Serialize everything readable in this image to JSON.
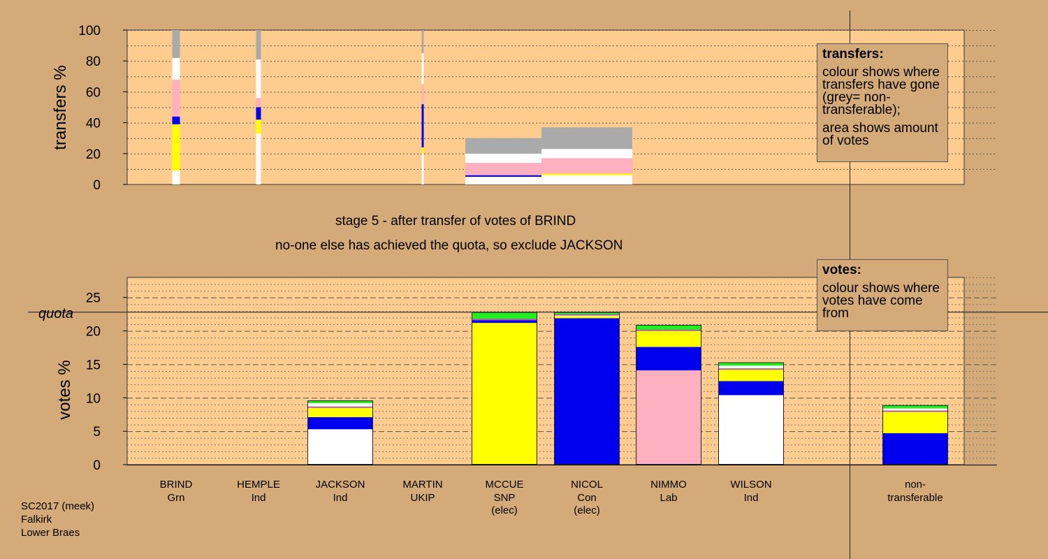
{
  "texts": {
    "stage_line": "stage 5 - after transfer of votes of BRIND",
    "exclude_line": "no-one else has achieved the quota, so exclude JACKSON",
    "quota_label": "quota",
    "footer": [
      "SC2017 (meek)",
      "Falkirk",
      "Lower Braes"
    ]
  },
  "legends": {
    "transfers": {
      "title": "transfers:",
      "lines": [
        "colour shows where transfers have gone (grey= non-transferable);",
        "area shows amount of votes"
      ]
    },
    "votes": {
      "title": "votes:",
      "lines": [
        "colour shows where votes have come from"
      ]
    }
  },
  "colors": {
    "background": "#d4aa78",
    "plot_bg": "#ffcc8f",
    "white": "#ffffff",
    "yellow": "#ffff00",
    "blue": "#0000ee",
    "pink": "#ffb0c0",
    "green": "#22ee22",
    "grey": "#aaaaaa",
    "purple": "#aa55aa"
  },
  "chart_data": [
    {
      "type": "bar",
      "stacked": true,
      "ylabel": "transfers %",
      "ylim": [
        0,
        100
      ],
      "yticks": [
        0,
        20,
        40,
        60,
        80,
        100
      ],
      "categories": [
        "BRIND",
        "HEMPLE",
        "JACKSON",
        "MARTIN",
        "MCCUE",
        "NICOL",
        "NIMMO",
        "WILSON"
      ],
      "bars": [
        {
          "category": "BRIND",
          "stage_width": 1,
          "segments": [
            {
              "color": "white",
              "value": 9
            },
            {
              "color": "yellow",
              "value": 30
            },
            {
              "color": "blue",
              "value": 5
            },
            {
              "color": "pink",
              "value": 24
            },
            {
              "color": "white",
              "value": 14
            },
            {
              "color": "grey",
              "value": 18
            }
          ]
        },
        {
          "category": "HEMPLE",
          "stage_width": 2,
          "segments": [
            {
              "color": "white",
              "value": 33
            },
            {
              "color": "yellow",
              "value": 9
            },
            {
              "color": "blue",
              "value": 8
            },
            {
              "color": "pink",
              "value": 6
            },
            {
              "color": "white",
              "value": 25
            },
            {
              "color": "grey",
              "value": 19
            }
          ]
        },
        {
          "category": "MARTIN",
          "stage_width": 3,
          "segments": [
            {
              "color": "white",
              "value": 20
            },
            {
              "color": "yellow",
              "value": 4
            },
            {
              "color": "blue",
              "value": 28
            },
            {
              "color": "pink",
              "value": 13
            },
            {
              "color": "white",
              "value": 20
            },
            {
              "color": "grey",
              "value": 15
            }
          ]
        },
        {
          "category": "MCCUE",
          "stage_width": 4,
          "segments": [
            {
              "color": "white",
              "value": 5
            },
            {
              "color": "blue",
              "value": 1
            },
            {
              "color": "pink",
              "value": 8
            },
            {
              "color": "white",
              "value": 6
            },
            {
              "color": "grey",
              "value": 10
            }
          ]
        },
        {
          "category": "NICOL",
          "stage_width": 5,
          "segments": [
            {
              "color": "white",
              "value": 6
            },
            {
              "color": "yellow",
              "value": 1
            },
            {
              "color": "pink",
              "value": 10
            },
            {
              "color": "white",
              "value": 6
            },
            {
              "color": "grey",
              "value": 14
            }
          ]
        }
      ]
    },
    {
      "type": "bar",
      "stacked": true,
      "ylabel": "votes %",
      "ylim": [
        0,
        28
      ],
      "yticks": [
        0,
        5,
        10,
        15,
        20,
        25
      ],
      "quota": 22.8,
      "categories": [
        {
          "name": "BRIND",
          "party": "Grn",
          "note": ""
        },
        {
          "name": "HEMPLE",
          "party": "Ind",
          "note": ""
        },
        {
          "name": "JACKSON",
          "party": "Ind",
          "note": ""
        },
        {
          "name": "MARTIN",
          "party": "UKIP",
          "note": ""
        },
        {
          "name": "MCCUE",
          "party": "SNP",
          "note": "(elec)"
        },
        {
          "name": "NICOL",
          "party": "Con",
          "note": "(elec)"
        },
        {
          "name": "NIMMO",
          "party": "Lab",
          "note": ""
        },
        {
          "name": "WILSON",
          "party": "Ind",
          "note": ""
        }
      ],
      "nontransferable_label": "non-\ntransferable",
      "bars": [
        {
          "category": "JACKSON",
          "segments": [
            {
              "color": "white",
              "value": 5.3
            },
            {
              "color": "blue",
              "value": 1.8
            },
            {
              "color": "yellow",
              "value": 1.4
            },
            {
              "color": "purple",
              "value": 0.2
            },
            {
              "color": "white",
              "value": 0.5
            },
            {
              "color": "green",
              "value": 0.4
            }
          ]
        },
        {
          "category": "MCCUE",
          "segments": [
            {
              "color": "yellow",
              "value": 21.2
            },
            {
              "color": "blue",
              "value": 0.4
            },
            {
              "color": "purple",
              "value": 0.2
            },
            {
              "color": "green",
              "value": 1.0
            }
          ]
        },
        {
          "category": "NICOL",
          "segments": [
            {
              "color": "blue",
              "value": 21.9
            },
            {
              "color": "yellow",
              "value": 0.3
            },
            {
              "color": "white",
              "value": 0.1
            },
            {
              "color": "purple",
              "value": 0.2
            },
            {
              "color": "green",
              "value": 0.3
            }
          ]
        },
        {
          "category": "NIMMO",
          "segments": [
            {
              "color": "pink",
              "value": 14.1
            },
            {
              "color": "blue",
              "value": 3.5
            },
            {
              "color": "yellow",
              "value": 2.4
            },
            {
              "color": "purple",
              "value": 0.2
            },
            {
              "color": "green",
              "value": 0.7
            }
          ]
        },
        {
          "category": "WILSON",
          "segments": [
            {
              "color": "white",
              "value": 10.4
            },
            {
              "color": "blue",
              "value": 2.1
            },
            {
              "color": "yellow",
              "value": 1.7
            },
            {
              "color": "purple",
              "value": 0.2
            },
            {
              "color": "white",
              "value": 0.4
            },
            {
              "color": "green",
              "value": 0.5
            }
          ]
        },
        {
          "category": "non-transferable",
          "segments": [
            {
              "color": "blue",
              "value": 4.7
            },
            {
              "color": "yellow",
              "value": 3.2
            },
            {
              "color": "purple",
              "value": 0.2
            },
            {
              "color": "white",
              "value": 0.3
            },
            {
              "color": "green",
              "value": 0.5
            }
          ]
        }
      ]
    }
  ]
}
